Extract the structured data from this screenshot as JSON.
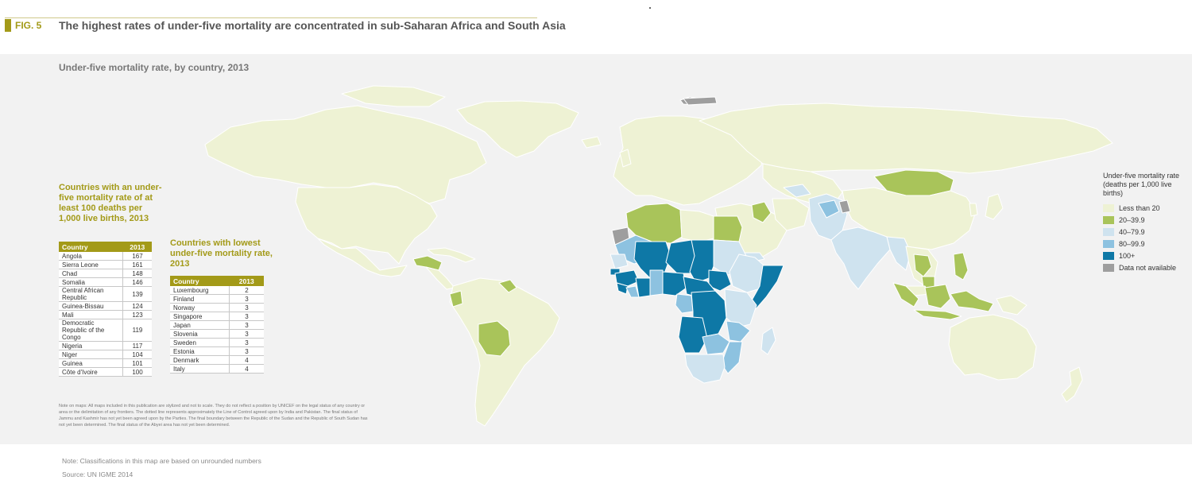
{
  "header": {
    "fig_label": "FIG. 5",
    "title": "The highest rates of under-five mortality are concentrated in sub-Saharan Africa and South Asia"
  },
  "map": {
    "subtitle": "Under-five mortality rate, by country, 2013",
    "note": "Note on maps: All maps included in this publication are stylized and not to scale. They do not reflect a position by UNICEF on the legal status of any country or area or the delimitation of any frontiers. The dotted line represents approximately the Line of Control agreed upon by India and Pakistan. The final status of Jammu and Kashmir has not yet been agreed upon by the Parties. The final boundary between the Republic of the Sudan and the Republic of South Sudan has not yet been determined. The final status of the Abyei area has not yet been determined.",
    "colors": {
      "ocean": "#f2f2f2",
      "border": "#ffffff",
      "less_than_20": "#eef2d4",
      "20_39_9": "#a9c45a",
      "40_79_9": "#cfe3ef",
      "80_99_9": "#8dc2e0",
      "100_plus": "#0e78a6",
      "not_available": "#9e9e9e"
    }
  },
  "high_table": {
    "heading": "Countries with an under-five mortality rate of at least 100 deaths per 1,000 live births, 2013",
    "col_country": "Country",
    "col_year": "2013",
    "rows": [
      {
        "country": "Angola",
        "value": "167"
      },
      {
        "country": "Sierra Leone",
        "value": "161"
      },
      {
        "country": "Chad",
        "value": "148"
      },
      {
        "country": "Somalia",
        "value": "146"
      },
      {
        "country": "Central African Republic",
        "value": "139"
      },
      {
        "country": "Guinea-Bissau",
        "value": "124"
      },
      {
        "country": "Mali",
        "value": "123"
      },
      {
        "country": "Democratic Republic of the Congo",
        "value": "119"
      },
      {
        "country": "Nigeria",
        "value": "117"
      },
      {
        "country": "Niger",
        "value": "104"
      },
      {
        "country": "Guinea",
        "value": "101"
      },
      {
        "country": "Côte d'Ivoire",
        "value": "100"
      }
    ]
  },
  "low_table": {
    "heading": "Countries with lowest under-five mortality rate, 2013",
    "col_country": "Country",
    "col_year": "2013",
    "rows": [
      {
        "country": "Luxembourg",
        "value": "2"
      },
      {
        "country": "Finland",
        "value": "3"
      },
      {
        "country": "Norway",
        "value": "3"
      },
      {
        "country": "Singapore",
        "value": "3"
      },
      {
        "country": "Japan",
        "value": "3"
      },
      {
        "country": "Slovenia",
        "value": "3"
      },
      {
        "country": "Sweden",
        "value": "3"
      },
      {
        "country": "Estonia",
        "value": "3"
      },
      {
        "country": "Denmark",
        "value": "4"
      },
      {
        "country": "Italy",
        "value": "4"
      }
    ]
  },
  "legend": {
    "title": "Under-five mortality rate (deaths per 1,000 live births)",
    "items": [
      {
        "label": "Less than 20",
        "color": "#eef2d4"
      },
      {
        "label": "20–39.9",
        "color": "#a9c45a"
      },
      {
        "label": "40–79.9",
        "color": "#cfe3ef"
      },
      {
        "label": "80–99.9",
        "color": "#8dc2e0"
      },
      {
        "label": "100+",
        "color": "#0e78a6"
      },
      {
        "label": "Data not available",
        "color": "#9e9e9e"
      }
    ]
  },
  "footer": {
    "note": "Note: Classifications in this map are based on unrounded numbers",
    "source": "Source: UN IGME 2014"
  }
}
